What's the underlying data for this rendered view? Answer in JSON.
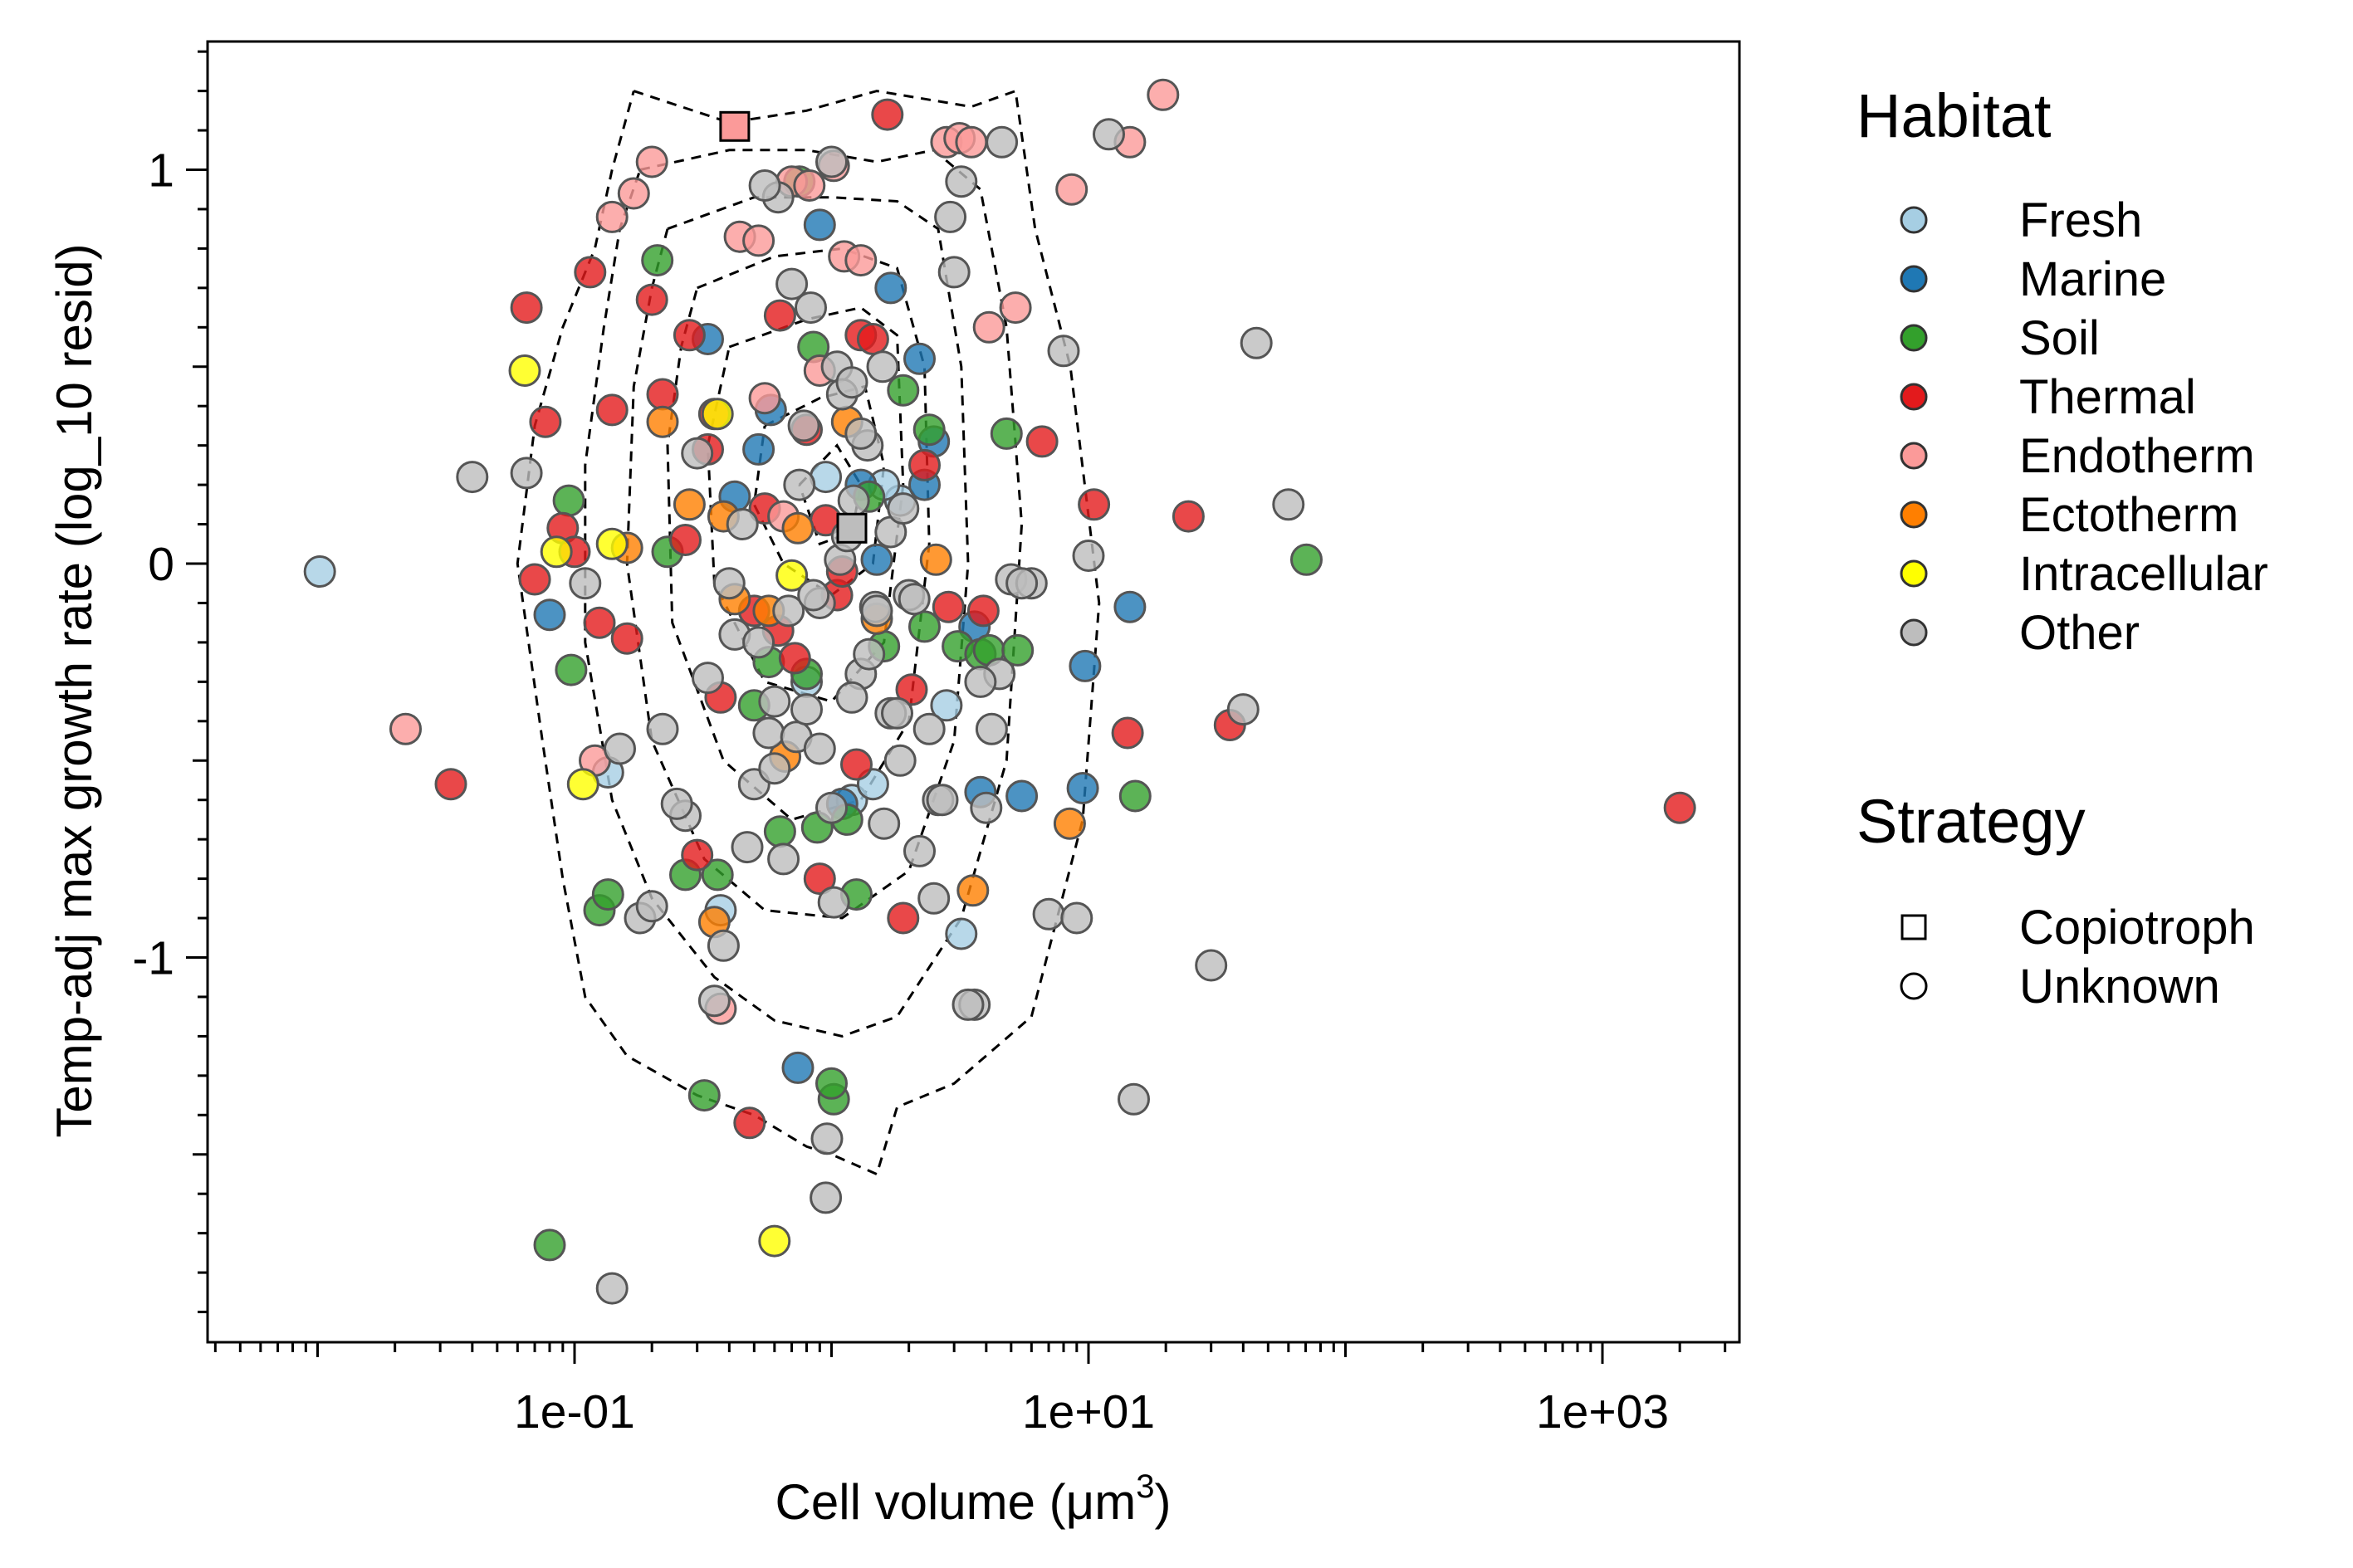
{
  "chart_data": {
    "type": "scatter",
    "x_label": "Cell volume (",
    "x_label_unit": "μm",
    "x_label_exp": "3",
    "x_label_close": ")",
    "y_label": "Temp-adj max growth rate (log_10 resid)",
    "x_scale": "log10",
    "x_range": [
      0.0067,
      3000
    ],
    "y_range": [
      -1.98,
      1.33
    ],
    "x_tick_labels": [
      "1e-01",
      "1e+01",
      "1e+03"
    ],
    "y_tick_labels": [
      "1",
      "0",
      "-1"
    ],
    "legend": {
      "habitat_title": "Habitat",
      "habitat": [
        {
          "name": "Fresh",
          "color": "#a6cee3"
        },
        {
          "name": "Marine",
          "color": "#1f78b4"
        },
        {
          "name": "Soil",
          "color": "#33a02c"
        },
        {
          "name": "Thermal",
          "color": "#e31a1c"
        },
        {
          "name": "Endotherm",
          "color": "#fb9a99"
        },
        {
          "name": "Ectotherm",
          "color": "#ff7f00"
        },
        {
          "name": "Intracellular",
          "color": "#ffff00"
        },
        {
          "name": "Other",
          "color": "#bdbdbd"
        }
      ],
      "strategy_title": "Strategy",
      "strategy": [
        {
          "name": "Copiotroph",
          "shape": "square"
        },
        {
          "name": "Unknown",
          "shape": "circle"
        }
      ]
    },
    "series": [
      {
        "name": "Fresh",
        "x": [
          0.0102,
          0.135,
          0.37,
          1.85,
          0.8,
          1.2,
          1.45,
          1.6,
          0.95,
          2.8,
          3.2
        ],
        "y": [
          -0.02,
          -0.53,
          -0.88,
          0.16,
          -0.3,
          -0.6,
          -0.56,
          0.2,
          0.22,
          -0.36,
          -0.94
        ]
      },
      {
        "name": "Marine",
        "x": [
          0.08,
          0.33,
          0.42,
          0.52,
          0.9,
          1.1,
          1.7,
          2.2,
          2.5,
          3.6,
          3.8,
          5.5,
          9.5,
          9.7,
          14.5,
          1.5,
          0.58,
          0.74,
          1.3,
          2.3
        ],
        "y": [
          -0.13,
          0.57,
          0.17,
          0.29,
          0.86,
          -0.61,
          0.7,
          0.52,
          0.31,
          -0.16,
          -0.58,
          -0.59,
          -0.57,
          -0.26,
          -0.11,
          0.01,
          0.39,
          -1.28,
          0.2,
          0.2
        ]
      },
      {
        "name": "Soil",
        "x": [
          0.08,
          0.095,
          0.097,
          0.125,
          0.135,
          0.21,
          0.23,
          0.27,
          0.32,
          0.36,
          0.5,
          0.57,
          0.63,
          0.75,
          0.8,
          0.88,
          1.02,
          1.15,
          1.4,
          1.6,
          1.9,
          2.3,
          2.4,
          3.1,
          3.8,
          4.1,
          4.8,
          5.3,
          15.2,
          70.5,
          0.85,
          1.0,
          1.25
        ],
        "y": [
          -1.73,
          0.16,
          -0.27,
          -0.88,
          -0.84,
          0.77,
          0.03,
          -0.79,
          -1.35,
          -0.79,
          -0.36,
          -0.25,
          -0.68,
          0.97,
          -0.28,
          -0.67,
          -1.36,
          -0.65,
          0.17,
          -0.21,
          0.44,
          -0.16,
          0.34,
          -0.21,
          -0.23,
          -0.22,
          0.33,
          -0.22,
          -0.59,
          0.01,
          0.55,
          -1.32,
          -0.84
        ]
      },
      {
        "name": "Thermal",
        "x": [
          0.033,
          0.065,
          0.07,
          0.077,
          0.09,
          0.1,
          0.115,
          0.125,
          0.14,
          0.16,
          0.2,
          0.22,
          0.27,
          0.3,
          0.35,
          0.37,
          0.48,
          0.55,
          0.63,
          0.72,
          0.9,
          1.05,
          1.3,
          1.65,
          1.9,
          2.05,
          2.3,
          2.85,
          3.9,
          6.6,
          10.5,
          14.2,
          24.5,
          35.5,
          2000,
          1.45,
          1.1,
          0.95,
          0.8,
          1.25,
          0.5,
          0.62,
          0.28,
          0.33
        ],
        "y": [
          -0.56,
          0.65,
          -0.04,
          0.36,
          0.09,
          0.03,
          0.74,
          -0.15,
          0.39,
          -0.19,
          0.67,
          0.43,
          0.06,
          -0.74,
          0.38,
          -0.34,
          -1.42,
          0.14,
          0.63,
          -0.24,
          -0.8,
          -0.08,
          0.58,
          1.14,
          -0.9,
          -0.32,
          0.25,
          -0.11,
          -0.12,
          0.31,
          0.15,
          -0.43,
          0.12,
          -0.41,
          -0.62,
          0.57,
          -0.02,
          0.11,
          0.34,
          -0.51,
          -0.12,
          -0.17,
          0.58,
          0.29
        ]
      },
      {
        "name": "Endotherm",
        "x": [
          0.022,
          0.12,
          0.14,
          0.17,
          0.2,
          0.37,
          0.44,
          0.52,
          0.7,
          0.82,
          1.02,
          1.12,
          1.3,
          2.8,
          3.15,
          3.5,
          4.1,
          5.2,
          8.6,
          14.5,
          19.5,
          0.65,
          0.55,
          0.9
        ],
        "y": [
          -0.42,
          -0.5,
          0.88,
          0.94,
          1.02,
          -1.13,
          0.83,
          0.82,
          0.97,
          0.96,
          1.01,
          0.78,
          0.77,
          1.07,
          1.08,
          1.07,
          0.6,
          0.65,
          0.95,
          1.07,
          1.19,
          0.12,
          0.42,
          0.49
        ]
      },
      {
        "name": "Ectotherm",
        "x": [
          0.16,
          0.22,
          0.28,
          0.35,
          0.38,
          0.42,
          0.57,
          0.66,
          1.15,
          1.5,
          2.55,
          3.55,
          8.45,
          0.74
        ],
        "y": [
          0.04,
          0.36,
          0.15,
          -0.91,
          0.12,
          -0.09,
          -0.12,
          -0.49,
          0.36,
          -0.14,
          0.01,
          -0.83,
          -0.66,
          0.09
        ]
      },
      {
        "name": "Intracellular",
        "x": [
          0.064,
          0.085,
          0.14,
          0.108,
          0.36,
          0.6,
          0.7
        ],
        "y": [
          0.49,
          0.03,
          0.05,
          -0.56,
          0.38,
          -1.72,
          -0.03
        ]
      },
      {
        "name": "Other",
        "x": [
          0.04,
          0.065,
          0.11,
          0.15,
          0.18,
          0.22,
          0.27,
          0.33,
          0.38,
          0.42,
          0.47,
          0.52,
          0.57,
          0.62,
          0.68,
          0.73,
          0.78,
          0.83,
          0.9,
          0.96,
          1.02,
          1.08,
          1.15,
          1.22,
          1.3,
          1.38,
          1.48,
          1.58,
          1.7,
          1.85,
          2.0,
          2.2,
          2.4,
          2.6,
          2.9,
          3.2,
          3.6,
          4.0,
          4.5,
          5.0,
          6.0,
          7.0,
          8.0,
          9.0,
          10.0,
          12.0,
          15.0,
          30.0,
          40.0,
          45.0,
          60.0,
          0.14,
          0.2,
          0.25,
          0.3,
          0.35,
          0.4,
          0.45,
          0.5,
          0.55,
          0.6,
          0.65,
          0.7,
          0.75,
          0.8,
          0.85,
          0.9,
          0.95,
          1.0,
          1.05,
          1.1,
          1.2,
          1.3,
          1.4,
          1.5,
          1.6,
          1.7,
          1.8,
          1.9,
          2.1,
          2.5,
          2.7,
          3.0,
          3.4,
          3.8,
          4.2,
          4.6,
          5.5,
          1.0,
          1.2,
          0.6
        ],
        "y": [
          0.22,
          0.23,
          -0.05,
          -0.47,
          -0.9,
          -0.42,
          -0.64,
          -0.29,
          -0.97,
          -0.18,
          -0.72,
          -0.2,
          -0.43,
          0.93,
          -0.12,
          -0.44,
          0.35,
          0.65,
          -0.1,
          -1.46,
          -0.86,
          0.01,
          0.07,
          0.16,
          -0.28,
          0.3,
          -0.11,
          0.5,
          -0.38,
          -0.5,
          -0.08,
          -0.73,
          -0.42,
          -0.6,
          0.88,
          0.97,
          -1.12,
          -0.62,
          -0.28,
          -0.04,
          -0.05,
          -0.89,
          0.54,
          -0.9,
          0.02,
          1.09,
          -1.36,
          -1.02,
          -0.37,
          0.56,
          0.15,
          -1.84,
          -0.87,
          -0.61,
          0.28,
          -1.11,
          -0.05,
          0.1,
          -0.56,
          0.96,
          -0.52,
          -0.75,
          0.71,
          0.2,
          -0.37,
          -0.08,
          -0.47,
          -1.61,
          1.02,
          0.5,
          0.43,
          -0.34,
          0.33,
          -0.23,
          -0.12,
          -0.66,
          0.08,
          -0.38,
          0.14,
          -0.09,
          -0.85,
          -0.6,
          0.74,
          -1.12,
          -0.3,
          -0.42,
          1.07,
          -0.05,
          -0.62,
          0.46,
          -0.35
        ]
      }
    ],
    "copiotroph": [
      {
        "habitat": "Endotherm",
        "x": 0.42,
        "y": 1.11
      },
      {
        "habitat": "Other",
        "x": 1.2,
        "y": 0.09
      }
    ],
    "contours": [
      {
        "level": 1,
        "points": [
          [
            0.07,
            -0.2
          ],
          [
            0.06,
            0.2
          ],
          [
            0.065,
            0.45
          ],
          [
            0.08,
            0.62
          ],
          [
            0.11,
            0.77
          ],
          [
            0.14,
            1.0
          ],
          [
            0.17,
            1.2
          ],
          [
            0.14,
            1.0
          ],
          [
            0.11,
            0.77
          ]
        ],
        "shape": [
          [
            0.17,
            1.2
          ],
          [
            0.4,
            1.12
          ],
          [
            0.8,
            1.15
          ],
          [
            1.5,
            1.2
          ],
          [
            3.5,
            1.16
          ],
          [
            5.2,
            1.2
          ],
          [
            6.2,
            0.85
          ],
          [
            8.5,
            0.5
          ],
          [
            11.0,
            -0.1
          ],
          [
            9.5,
            -0.65
          ],
          [
            6.0,
            -1.15
          ],
          [
            3.0,
            -1.32
          ],
          [
            1.8,
            -1.38
          ],
          [
            1.5,
            -1.55
          ],
          [
            1.0,
            -1.5
          ],
          [
            0.8,
            -1.48
          ],
          [
            0.5,
            -1.4
          ],
          [
            0.3,
            -1.35
          ],
          [
            0.16,
            -1.25
          ],
          [
            0.11,
            -1.1
          ],
          [
            0.09,
            -0.8
          ],
          [
            0.075,
            -0.45
          ],
          [
            0.06,
            0.0
          ],
          [
            0.07,
            0.35
          ],
          [
            0.09,
            0.6
          ],
          [
            0.12,
            0.8
          ],
          [
            0.14,
            1.0
          ],
          [
            0.17,
            1.2
          ]
        ]
      },
      {
        "level": 2,
        "shape": [
          [
            0.18,
            1.0
          ],
          [
            0.4,
            1.05
          ],
          [
            0.8,
            1.05
          ],
          [
            1.5,
            1.02
          ],
          [
            2.5,
            1.05
          ],
          [
            3.8,
            0.95
          ],
          [
            4.8,
            0.6
          ],
          [
            5.5,
            0.1
          ],
          [
            4.8,
            -0.5
          ],
          [
            3.2,
            -0.9
          ],
          [
            1.8,
            -1.15
          ],
          [
            1.1,
            -1.2
          ],
          [
            0.6,
            -1.16
          ],
          [
            0.35,
            -1.05
          ],
          [
            0.2,
            -0.85
          ],
          [
            0.14,
            -0.6
          ],
          [
            0.11,
            -0.2
          ],
          [
            0.11,
            0.25
          ],
          [
            0.13,
            0.6
          ],
          [
            0.15,
            0.85
          ],
          [
            0.18,
            1.0
          ]
        ]
      },
      {
        "level": 3,
        "shape": [
          [
            0.23,
            0.85
          ],
          [
            0.5,
            0.93
          ],
          [
            1.0,
            0.93
          ],
          [
            1.8,
            0.92
          ],
          [
            2.6,
            0.85
          ],
          [
            3.2,
            0.5
          ],
          [
            3.4,
            0.0
          ],
          [
            3.0,
            -0.45
          ],
          [
            2.0,
            -0.78
          ],
          [
            1.1,
            -0.9
          ],
          [
            0.55,
            -0.88
          ],
          [
            0.32,
            -0.75
          ],
          [
            0.2,
            -0.45
          ],
          [
            0.16,
            0.0
          ],
          [
            0.17,
            0.45
          ],
          [
            0.2,
            0.7
          ],
          [
            0.23,
            0.85
          ]
        ]
      },
      {
        "level": 4,
        "shape": [
          [
            0.3,
            0.7
          ],
          [
            0.6,
            0.78
          ],
          [
            1.1,
            0.8
          ],
          [
            1.8,
            0.75
          ],
          [
            2.3,
            0.5
          ],
          [
            2.4,
            0.05
          ],
          [
            2.0,
            -0.4
          ],
          [
            1.3,
            -0.6
          ],
          [
            0.7,
            -0.65
          ],
          [
            0.38,
            -0.5
          ],
          [
            0.24,
            -0.15
          ],
          [
            0.23,
            0.3
          ],
          [
            0.26,
            0.55
          ],
          [
            0.3,
            0.7
          ]
        ]
      },
      {
        "level": 5,
        "shape": [
          [
            0.4,
            0.55
          ],
          [
            0.8,
            0.62
          ],
          [
            1.3,
            0.65
          ],
          [
            1.8,
            0.58
          ],
          [
            1.9,
            0.2
          ],
          [
            1.6,
            -0.2
          ],
          [
            1.0,
            -0.35
          ],
          [
            0.55,
            -0.3
          ],
          [
            0.35,
            -0.05
          ],
          [
            0.33,
            0.3
          ],
          [
            0.4,
            0.55
          ]
        ]
      },
      {
        "level": 6,
        "shape": [
          [
            0.55,
            0.35
          ],
          [
            0.9,
            0.42
          ],
          [
            1.35,
            0.45
          ],
          [
            1.6,
            0.25
          ],
          [
            1.45,
            0.0
          ],
          [
            1.0,
            -0.08
          ],
          [
            0.65,
            0.0
          ],
          [
            0.5,
            0.15
          ],
          [
            0.55,
            0.35
          ]
        ]
      },
      {
        "level": 7,
        "shape": [
          [
            0.75,
            0.2
          ],
          [
            1.05,
            0.3
          ],
          [
            1.3,
            0.2
          ],
          [
            1.2,
            0.08
          ],
          [
            0.9,
            0.05
          ],
          [
            0.75,
            0.2
          ]
        ]
      }
    ]
  }
}
